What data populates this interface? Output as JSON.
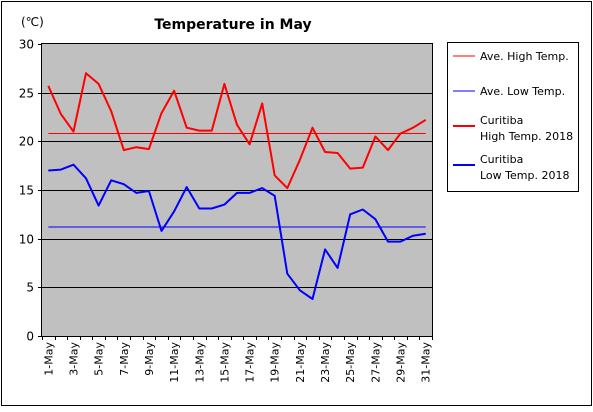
{
  "chart_data": {
    "type": "line",
    "title": "Temperature in May",
    "unit_label": "(℃)",
    "ylim": [
      0,
      30
    ],
    "y_ticks": [
      "0",
      "5",
      "10",
      "15",
      "20",
      "25",
      "30"
    ],
    "x": [
      "1-May",
      "2-May",
      "3-May",
      "4-May",
      "5-May",
      "6-May",
      "7-May",
      "8-May",
      "9-May",
      "10-May",
      "11-May",
      "12-May",
      "13-May",
      "14-May",
      "15-May",
      "16-May",
      "17-May",
      "18-May",
      "19-May",
      "20-May",
      "21-May",
      "22-May",
      "23-May",
      "24-May",
      "25-May",
      "26-May",
      "27-May",
      "28-May",
      "29-May",
      "30-May",
      "31-May"
    ],
    "x_tick_labels": [
      "1-May",
      "3-May",
      "5-May",
      "7-May",
      "9-May",
      "11-May",
      "13-May",
      "15-May",
      "17-May",
      "19-May",
      "21-May",
      "23-May",
      "25-May",
      "27-May",
      "29-May",
      "31-May"
    ],
    "plot_background": "#c0c0c0",
    "grid": true,
    "legend_position": "right",
    "series": [
      {
        "name": "Ave. High Temp.",
        "color": "#ff0000",
        "thin": true,
        "values": [
          20.8,
          20.8,
          20.8,
          20.8,
          20.8,
          20.8,
          20.8,
          20.8,
          20.8,
          20.8,
          20.8,
          20.8,
          20.8,
          20.8,
          20.8,
          20.8,
          20.8,
          20.8,
          20.8,
          20.8,
          20.8,
          20.8,
          20.8,
          20.8,
          20.8,
          20.8,
          20.8,
          20.8,
          20.8,
          20.8,
          20.8
        ]
      },
      {
        "name": "Ave. Low Temp.",
        "color": "#0000ff",
        "thin": true,
        "values": [
          11.2,
          11.2,
          11.2,
          11.2,
          11.2,
          11.2,
          11.2,
          11.2,
          11.2,
          11.2,
          11.2,
          11.2,
          11.2,
          11.2,
          11.2,
          11.2,
          11.2,
          11.2,
          11.2,
          11.2,
          11.2,
          11.2,
          11.2,
          11.2,
          11.2,
          11.2,
          11.2,
          11.2,
          11.2,
          11.2,
          11.2
        ]
      },
      {
        "name": "Curitiba High Temp. 2018",
        "legend_lines": [
          "Curitiba",
          "High Temp. 2018"
        ],
        "color": "#ff0000",
        "thin": false,
        "values": [
          25.7,
          22.8,
          21.0,
          27.0,
          25.9,
          23.1,
          19.1,
          19.4,
          19.2,
          22.9,
          25.2,
          21.4,
          21.1,
          21.1,
          25.9,
          21.7,
          19.7,
          23.9,
          16.5,
          15.2,
          18.1,
          21.4,
          18.9,
          18.8,
          17.2,
          17.3,
          20.5,
          19.1,
          20.8,
          21.4,
          22.2
        ]
      },
      {
        "name": "Curitiba Low Temp. 2018",
        "legend_lines": [
          "Curitiba",
          "Low Temp. 2018"
        ],
        "color": "#0000ff",
        "thin": false,
        "values": [
          17.0,
          17.1,
          17.6,
          16.2,
          13.4,
          16.0,
          15.6,
          14.7,
          14.9,
          10.8,
          12.8,
          15.3,
          13.1,
          13.1,
          13.5,
          14.7,
          14.7,
          15.2,
          14.4,
          6.4,
          4.7,
          3.8,
          8.9,
          7.0,
          12.5,
          13.0,
          12.0,
          9.7,
          9.7,
          10.3,
          10.5
        ]
      }
    ]
  }
}
